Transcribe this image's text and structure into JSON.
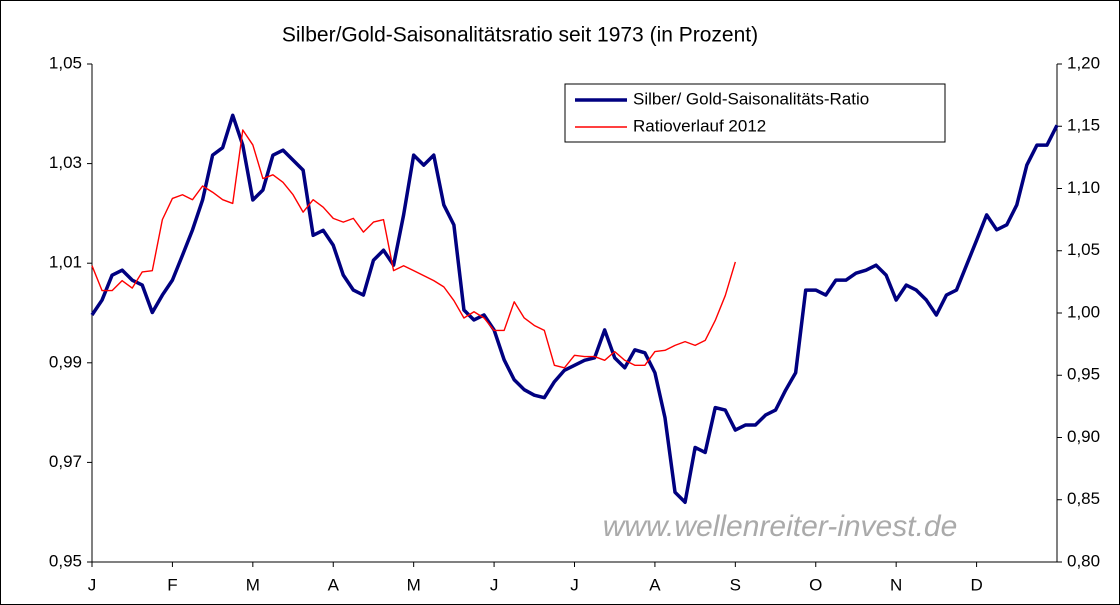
{
  "chart_data": {
    "type": "line",
    "title": "Silber/Gold-Saisonalitätsratio seit 1973 (in Prozent)",
    "watermark": "www.wellenreiter-invest.de",
    "xlim": [
      0,
      96
    ],
    "xticks": [
      {
        "value": 0,
        "label": "J"
      },
      {
        "value": 8,
        "label": "F"
      },
      {
        "value": 16,
        "label": "M"
      },
      {
        "value": 24,
        "label": "A"
      },
      {
        "value": 32,
        "label": "M"
      },
      {
        "value": 40,
        "label": "J"
      },
      {
        "value": 48,
        "label": "J"
      },
      {
        "value": 56,
        "label": "A"
      },
      {
        "value": 64,
        "label": "S"
      },
      {
        "value": 72,
        "label": "O"
      },
      {
        "value": 80,
        "label": "N"
      },
      {
        "value": 88,
        "label": "D"
      }
    ],
    "ylim": [
      0.95,
      1.05
    ],
    "yticks": [
      {
        "value": 0.95,
        "label": "0,95"
      },
      {
        "value": 0.97,
        "label": "0,97"
      },
      {
        "value": 0.99,
        "label": "0,99"
      },
      {
        "value": 1.01,
        "label": "1,01"
      },
      {
        "value": 1.03,
        "label": "1,03"
      },
      {
        "value": 1.05,
        "label": "1,05"
      }
    ],
    "y2lim": [
      0.8,
      1.2
    ],
    "y2ticks": [
      {
        "value": 0.8,
        "label": "0,80"
      },
      {
        "value": 0.85,
        "label": "0,85"
      },
      {
        "value": 0.9,
        "label": "0,90"
      },
      {
        "value": 0.95,
        "label": "0,95"
      },
      {
        "value": 1.0,
        "label": "1,00"
      },
      {
        "value": 1.05,
        "label": "1,05"
      },
      {
        "value": 1.1,
        "label": "1,10"
      },
      {
        "value": 1.15,
        "label": "1,15"
      },
      {
        "value": 1.2,
        "label": "1,20"
      }
    ],
    "legend": "top-right",
    "series": [
      {
        "name": "Silber/ Gold-Saisonalitäts-Ratio",
        "color": "#000080",
        "axis": "y",
        "values": [
          0.9996,
          1.0026,
          1.0076,
          1.0086,
          1.0066,
          1.0056,
          1.0001,
          1.0036,
          1.0066,
          1.0116,
          1.0167,
          1.0227,
          1.0317,
          1.0332,
          1.0397,
          1.0337,
          1.0227,
          1.0247,
          1.0317,
          1.0327,
          1.0307,
          1.0287,
          1.0156,
          1.0166,
          1.0136,
          1.0076,
          1.0046,
          1.0036,
          1.0106,
          1.0126,
          1.0096,
          1.0197,
          1.0317,
          1.0297,
          1.0317,
          1.0217,
          1.0177,
          1.0006,
          0.9986,
          0.9996,
          0.9966,
          0.9906,
          0.9866,
          0.9846,
          0.9835,
          0.983,
          0.9862,
          0.9885,
          0.9895,
          0.9905,
          0.991,
          0.9966,
          0.991,
          0.989,
          0.9926,
          0.992,
          0.988,
          0.979,
          0.964,
          0.962,
          0.973,
          0.972,
          0.981,
          0.9805,
          0.9765,
          0.9775,
          0.9775,
          0.9795,
          0.9805,
          0.9845,
          0.988,
          1.0046,
          1.0046,
          1.0036,
          1.0066,
          1.0066,
          1.008,
          1.0086,
          1.0096,
          1.0076,
          1.0026,
          1.0056,
          1.0046,
          1.0026,
          0.9996,
          1.0036,
          1.0046,
          1.0096,
          1.0146,
          1.0197,
          1.0167,
          1.0177,
          1.0217,
          1.0297,
          1.0337,
          1.0337,
          1.0377
        ]
      },
      {
        "name": "Ratioverlauf 2012",
        "color": "#ff0000",
        "axis": "y2",
        "values": [
          1.038,
          1.018,
          1.018,
          1.026,
          1.02,
          1.033,
          1.034,
          1.075,
          1.092,
          1.095,
          1.091,
          1.102,
          1.097,
          1.091,
          1.088,
          1.147,
          1.135,
          1.108,
          1.111,
          1.105,
          1.095,
          1.081,
          1.091,
          1.085,
          1.076,
          1.073,
          1.076,
          1.065,
          1.073,
          1.075,
          1.034,
          1.038,
          1.034,
          1.03,
          1.026,
          1.021,
          1.01,
          0.996,
          1.001,
          0.996,
          0.986,
          0.986,
          1.009,
          0.996,
          0.99,
          0.986,
          0.958,
          0.956,
          0.966,
          0.965,
          0.965,
          0.962,
          0.969,
          0.962,
          0.958,
          0.958,
          0.969,
          0.97,
          0.974,
          0.977,
          0.974,
          0.978,
          0.994,
          1.014,
          1.041,
          null,
          null,
          null,
          null,
          null,
          null,
          null,
          null,
          null,
          null,
          null,
          null,
          null,
          null,
          null,
          null,
          null,
          null,
          null,
          null,
          null,
          null,
          null,
          null,
          null,
          null,
          null,
          null,
          null,
          null,
          null,
          null
        ]
      }
    ]
  }
}
